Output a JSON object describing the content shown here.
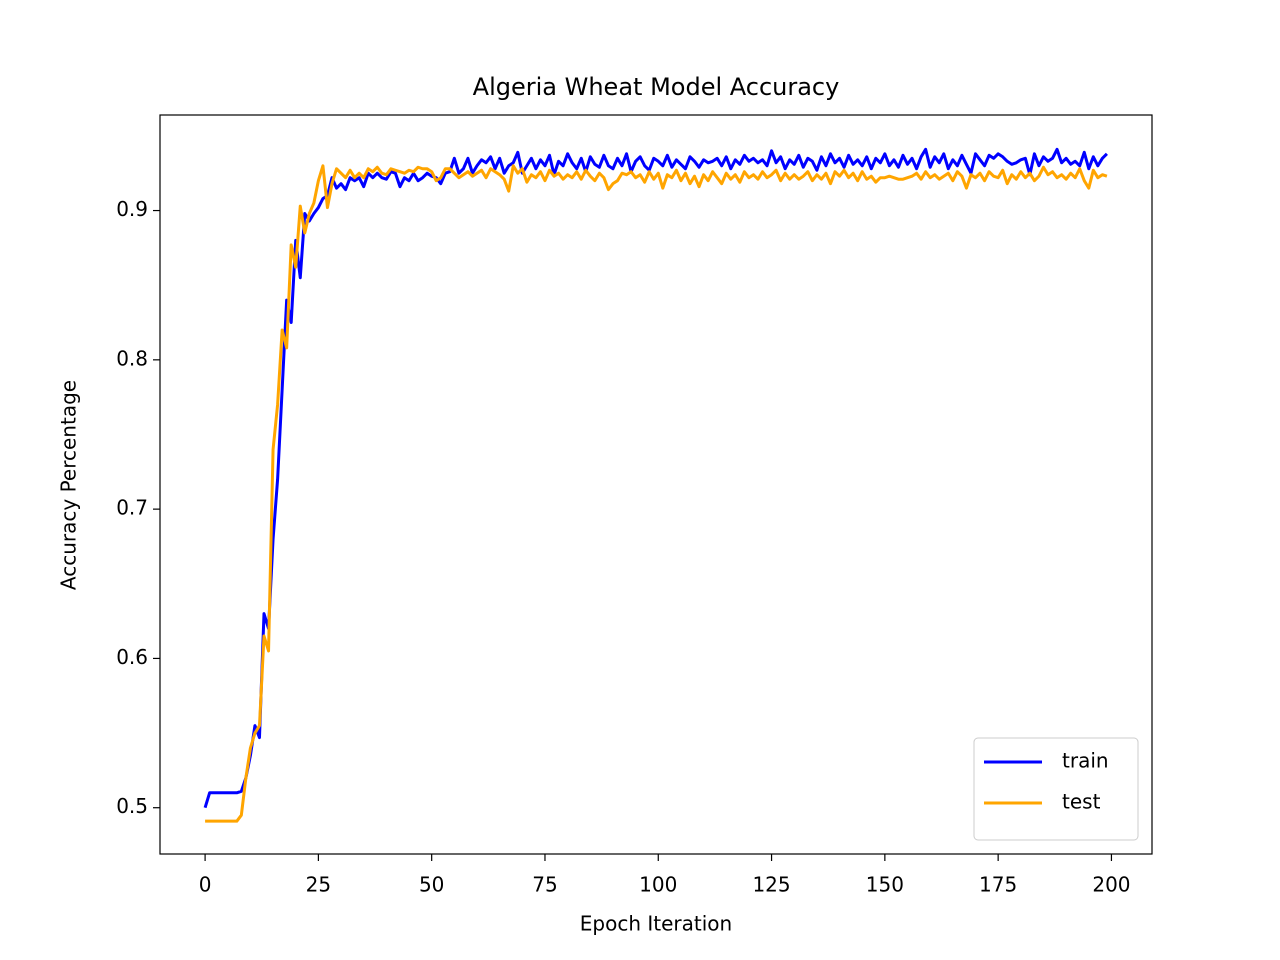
{
  "chart_data": {
    "type": "line",
    "title": "Algeria Wheat Model Accuracy",
    "x_label": "Epoch Iteration",
    "y_label": "Accuracy Percentage",
    "x": [
      0,
      1,
      2,
      3,
      4,
      5,
      6,
      7,
      8,
      9,
      10,
      11,
      12,
      13,
      14,
      15,
      16,
      17,
      18,
      19,
      20,
      21,
      22,
      23,
      24,
      25,
      26,
      27,
      28,
      29,
      30,
      31,
      32,
      33,
      34,
      35,
      36,
      37,
      38,
      39,
      40,
      41,
      42,
      43,
      44,
      45,
      46,
      47,
      48,
      49,
      50,
      51,
      52,
      53,
      54,
      55,
      56,
      57,
      58,
      59,
      60,
      61,
      62,
      63,
      64,
      65,
      66,
      67,
      68,
      69,
      70,
      71,
      72,
      73,
      74,
      75,
      76,
      77,
      78,
      79,
      80,
      81,
      82,
      83,
      84,
      85,
      86,
      87,
      88,
      89,
      90,
      91,
      92,
      93,
      94,
      95,
      96,
      97,
      98,
      99,
      100,
      101,
      102,
      103,
      104,
      105,
      106,
      107,
      108,
      109,
      110,
      111,
      112,
      113,
      114,
      115,
      116,
      117,
      118,
      119,
      120,
      121,
      122,
      123,
      124,
      125,
      126,
      127,
      128,
      129,
      130,
      131,
      132,
      133,
      134,
      135,
      136,
      137,
      138,
      139,
      140,
      141,
      142,
      143,
      144,
      145,
      146,
      147,
      148,
      149,
      150,
      151,
      152,
      153,
      154,
      155,
      156,
      157,
      158,
      159,
      160,
      161,
      162,
      163,
      164,
      165,
      166,
      167,
      168,
      169,
      170,
      171,
      172,
      173,
      174,
      175,
      176,
      177,
      178,
      179,
      180,
      181,
      182,
      183,
      184,
      185,
      186,
      187,
      188,
      189,
      190,
      191,
      192,
      193,
      194,
      195,
      196,
      197,
      198,
      199
    ],
    "series": [
      {
        "name": "train",
        "color": "#0000ff",
        "values": [
          0.5,
          0.51,
          0.51,
          0.51,
          0.51,
          0.51,
          0.51,
          0.51,
          0.511,
          0.52,
          0.535,
          0.555,
          0.547,
          0.63,
          0.62,
          0.68,
          0.72,
          0.78,
          0.84,
          0.825,
          0.88,
          0.855,
          0.898,
          0.893,
          0.898,
          0.902,
          0.908,
          0.91,
          0.922,
          0.915,
          0.918,
          0.914,
          0.922,
          0.92,
          0.922,
          0.916,
          0.925,
          0.922,
          0.925,
          0.922,
          0.921,
          0.926,
          0.925,
          0.916,
          0.922,
          0.92,
          0.925,
          0.92,
          0.922,
          0.925,
          0.923,
          0.922,
          0.918,
          0.925,
          0.926,
          0.935,
          0.925,
          0.928,
          0.935,
          0.925,
          0.93,
          0.934,
          0.932,
          0.936,
          0.928,
          0.935,
          0.925,
          0.93,
          0.932,
          0.939,
          0.925,
          0.93,
          0.935,
          0.928,
          0.934,
          0.93,
          0.937,
          0.924,
          0.933,
          0.93,
          0.938,
          0.932,
          0.928,
          0.935,
          0.926,
          0.936,
          0.931,
          0.929,
          0.937,
          0.93,
          0.928,
          0.935,
          0.93,
          0.938,
          0.926,
          0.933,
          0.936,
          0.93,
          0.927,
          0.935,
          0.933,
          0.93,
          0.937,
          0.929,
          0.934,
          0.931,
          0.928,
          0.936,
          0.933,
          0.929,
          0.934,
          0.932,
          0.933,
          0.935,
          0.93,
          0.936,
          0.928,
          0.934,
          0.931,
          0.937,
          0.933,
          0.935,
          0.932,
          0.934,
          0.93,
          0.94,
          0.932,
          0.936,
          0.928,
          0.934,
          0.931,
          0.937,
          0.929,
          0.935,
          0.933,
          0.927,
          0.936,
          0.93,
          0.938,
          0.932,
          0.935,
          0.929,
          0.937,
          0.931,
          0.934,
          0.93,
          0.936,
          0.928,
          0.935,
          0.932,
          0.938,
          0.93,
          0.934,
          0.929,
          0.937,
          0.931,
          0.935,
          0.928,
          0.936,
          0.941,
          0.929,
          0.936,
          0.932,
          0.938,
          0.928,
          0.934,
          0.93,
          0.937,
          0.931,
          0.925,
          0.938,
          0.934,
          0.93,
          0.937,
          0.935,
          0.938,
          0.936,
          0.933,
          0.931,
          0.932,
          0.934,
          0.935,
          0.924,
          0.938,
          0.93,
          0.936,
          0.933,
          0.935,
          0.941,
          0.932,
          0.935,
          0.931,
          0.933,
          0.93,
          0.939,
          0.928,
          0.936,
          0.93,
          0.935,
          0.938
        ]
      },
      {
        "name": "test",
        "color": "#ffa500",
        "values": [
          0.491,
          0.491,
          0.491,
          0.491,
          0.491,
          0.491,
          0.491,
          0.491,
          0.495,
          0.52,
          0.54,
          0.55,
          0.555,
          0.615,
          0.605,
          0.74,
          0.77,
          0.82,
          0.808,
          0.877,
          0.862,
          0.903,
          0.885,
          0.898,
          0.905,
          0.92,
          0.93,
          0.902,
          0.918,
          0.928,
          0.925,
          0.922,
          0.927,
          0.922,
          0.925,
          0.922,
          0.928,
          0.926,
          0.929,
          0.925,
          0.924,
          0.928,
          0.927,
          0.926,
          0.925,
          0.927,
          0.926,
          0.929,
          0.928,
          0.928,
          0.926,
          0.92,
          0.922,
          0.928,
          0.928,
          0.925,
          0.922,
          0.924,
          0.926,
          0.923,
          0.925,
          0.927,
          0.922,
          0.928,
          0.926,
          0.924,
          0.921,
          0.913,
          0.93,
          0.925,
          0.928,
          0.919,
          0.924,
          0.922,
          0.926,
          0.92,
          0.927,
          0.923,
          0.925,
          0.921,
          0.924,
          0.922,
          0.926,
          0.921,
          0.927,
          0.923,
          0.92,
          0.925,
          0.922,
          0.914,
          0.918,
          0.92,
          0.925,
          0.924,
          0.926,
          0.922,
          0.924,
          0.919,
          0.926,
          0.921,
          0.925,
          0.915,
          0.924,
          0.922,
          0.927,
          0.92,
          0.925,
          0.918,
          0.923,
          0.916,
          0.924,
          0.92,
          0.926,
          0.922,
          0.918,
          0.925,
          0.921,
          0.924,
          0.919,
          0.926,
          0.922,
          0.924,
          0.921,
          0.926,
          0.922,
          0.924,
          0.927,
          0.92,
          0.925,
          0.921,
          0.924,
          0.921,
          0.923,
          0.926,
          0.92,
          0.924,
          0.921,
          0.925,
          0.918,
          0.926,
          0.923,
          0.927,
          0.922,
          0.925,
          0.92,
          0.926,
          0.921,
          0.923,
          0.919,
          0.922,
          0.922,
          0.923,
          0.922,
          0.921,
          0.921,
          0.922,
          0.923,
          0.925,
          0.921,
          0.926,
          0.922,
          0.924,
          0.921,
          0.923,
          0.925,
          0.92,
          0.926,
          0.923,
          0.915,
          0.924,
          0.922,
          0.925,
          0.92,
          0.926,
          0.923,
          0.922,
          0.927,
          0.918,
          0.924,
          0.921,
          0.926,
          0.922,
          0.925,
          0.92,
          0.923,
          0.929,
          0.924,
          0.926,
          0.922,
          0.924,
          0.921,
          0.925,
          0.922,
          0.928,
          0.92,
          0.915,
          0.927,
          0.922,
          0.924,
          0.923
        ]
      }
    ],
    "xlim": [
      -9.95,
      208.95
    ],
    "xticks": [
      0,
      25,
      50,
      75,
      100,
      125,
      150,
      175,
      200
    ],
    "ylim": [
      0.469,
      0.964
    ],
    "yticks": [
      0.5,
      0.6,
      0.7,
      0.8,
      0.9
    ],
    "legend": "lower right",
    "grid": false
  }
}
